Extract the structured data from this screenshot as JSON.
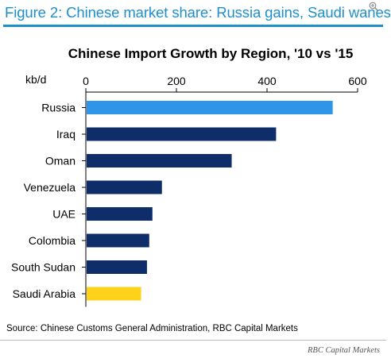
{
  "header": {
    "figure_title": "Figure 2: Chinese market share: Russia gains, Saudi wanes",
    "zoom_icon": "zoom-in-icon"
  },
  "chart_data": {
    "type": "bar",
    "orientation": "horizontal",
    "title": "Chinese Import Growth by Region, '10 vs '15",
    "unit_label": "kb/d",
    "categories": [
      "Russia",
      "Iraq",
      "Oman",
      "Venezuela",
      "UAE",
      "Colombia",
      "South Sudan",
      "Saudi Arabia"
    ],
    "values": [
      545,
      420,
      322,
      168,
      147,
      140,
      135,
      122
    ],
    "colors": [
      "#2e95e8",
      "#0f2d69",
      "#0f2d69",
      "#0f2d69",
      "#0f2d69",
      "#0f2d69",
      "#0f2d69",
      "#ffd21a"
    ],
    "xlim": [
      0,
      600
    ],
    "xticks": [
      "0",
      "200",
      "400",
      "600"
    ],
    "axis_position": "top",
    "grid": false
  },
  "footer": {
    "source": "Source: Chinese Customs General Administration, RBC Capital Markets",
    "credit": "RBC Capital Markets"
  }
}
